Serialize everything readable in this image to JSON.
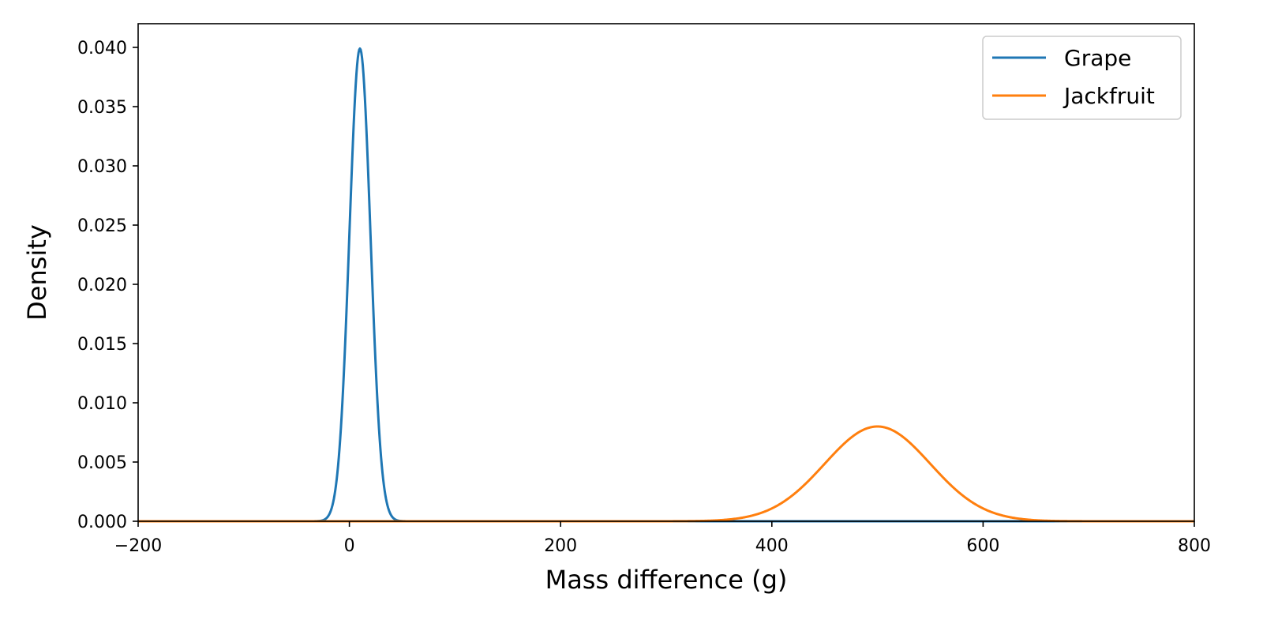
{
  "chart_data": {
    "type": "line",
    "title": "",
    "xlabel": "Mass difference (g)",
    "ylabel": "Density",
    "xlim": [
      -200,
      800
    ],
    "ylim": [
      0,
      0.042
    ],
    "xticks": [
      -200,
      0,
      200,
      400,
      600,
      800
    ],
    "xtick_labels": [
      "−200",
      "0",
      "200",
      "400",
      "600",
      "800"
    ],
    "yticks": [
      0,
      0.005,
      0.01,
      0.015,
      0.02,
      0.025,
      0.03,
      0.035,
      0.04
    ],
    "ytick_labels": [
      "0.000",
      "0.005",
      "0.010",
      "0.015",
      "0.020",
      "0.025",
      "0.030",
      "0.035",
      "0.040"
    ],
    "grid": false,
    "legend_position": "top-right",
    "series": [
      {
        "name": "Grape",
        "color": "#1f77b4",
        "distribution": "normal",
        "mean": 10,
        "std": 10,
        "peak_density": 0.0399
      },
      {
        "name": "Jackfruit",
        "color": "#ff7f0e",
        "distribution": "normal",
        "mean": 500,
        "std": 50,
        "peak_density": 0.008
      }
    ]
  }
}
